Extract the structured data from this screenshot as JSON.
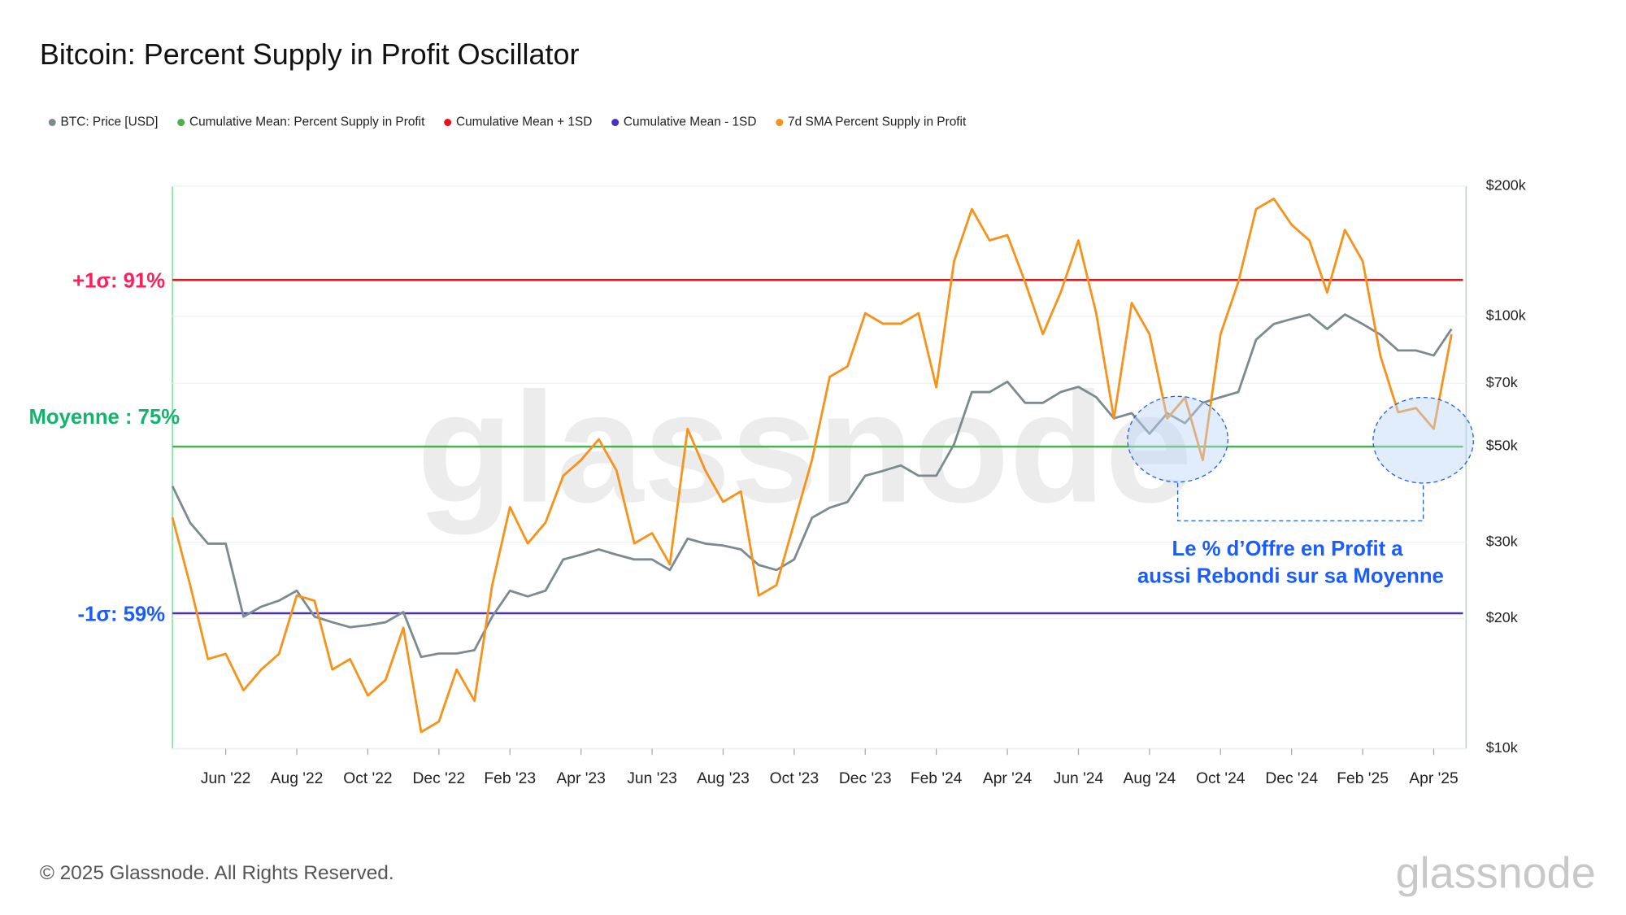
{
  "chart_data": {
    "type": "line",
    "title": "Bitcoin: Percent Supply in Profit Oscillator",
    "watermark": "glassnode",
    "footer": "© 2025 Glassnode. All Rights Reserved.",
    "logo": "glassnode",
    "annotation": [
      "Le % d’Offre en Profit a",
      "aussi Rebondi sur sa Moyenne"
    ],
    "categories": [
      null,
      null,
      null,
      "Jun '22",
      null,
      null,
      null,
      "Aug '22",
      null,
      null,
      null,
      "Oct '22",
      null,
      null,
      null,
      "Dec '22",
      null,
      null,
      null,
      "Feb '23",
      null,
      null,
      null,
      "Apr '23",
      null,
      null,
      null,
      "Jun '23",
      null,
      null,
      null,
      "Aug '23",
      null,
      null,
      null,
      "Oct '23",
      null,
      null,
      null,
      "Dec '23",
      null,
      null,
      null,
      "Feb '24",
      null,
      null,
      null,
      "Apr '24",
      null,
      null,
      null,
      "Jun '24",
      null,
      null,
      null,
      "Aug '24",
      null,
      null,
      null,
      "Oct '24",
      null,
      null,
      null,
      "Dec '24",
      null,
      null,
      null,
      "Feb '25",
      null,
      null,
      null,
      "Apr '25",
      null
    ],
    "ylim": [
      46,
      100
    ],
    "y2lim": [
      10000,
      200000
    ],
    "y2log": true,
    "y2ticks": [
      {
        "value": 10000,
        "label": "$10k"
      },
      {
        "value": 20000,
        "label": "$20k"
      },
      {
        "value": 30000,
        "label": "$30k"
      },
      {
        "value": 50000,
        "label": "$50k"
      },
      {
        "value": 70000,
        "label": "$70k"
      },
      {
        "value": 100000,
        "label": "$100k"
      },
      {
        "value": 200000,
        "label": "$200k"
      }
    ],
    "grid": true,
    "series": [
      {
        "name": "BTC: Price [USD]",
        "color": "#7d8b8f",
        "axis": "y2",
        "values": [
          40500,
          33300,
          29800,
          29800,
          20200,
          21300,
          22000,
          23200,
          20200,
          19600,
          19100,
          19300,
          19600,
          20700,
          16300,
          16600,
          16600,
          16900,
          20200,
          23200,
          22500,
          23200,
          27400,
          28100,
          28900,
          28100,
          27400,
          27400,
          25900,
          30600,
          29800,
          29500,
          28900,
          26600,
          25900,
          27400,
          34200,
          36100,
          37200,
          42800,
          43900,
          45200,
          42800,
          42800,
          50600,
          66800,
          66800,
          70600,
          63100,
          63100,
          66800,
          68700,
          65000,
          58100,
          59700,
          53500,
          59700,
          56600,
          63100,
          65000,
          66800,
          88300,
          96000,
          98600,
          101000,
          93500,
          101000,
          96000,
          90700,
          83400,
          83400,
          81200,
          93500
        ]
      },
      {
        "name": "7d SMA Percent Supply in Profit",
        "color": "#f7931a",
        "values": [
          68.2,
          61.7,
          54.6,
          55.1,
          51.6,
          53.6,
          55.1,
          60.7,
          60.2,
          53.6,
          54.6,
          51.1,
          52.6,
          57.6,
          47.6,
          48.6,
          53.6,
          50.6,
          61.7,
          69.2,
          65.7,
          67.7,
          72.2,
          73.7,
          75.7,
          72.7,
          65.7,
          66.7,
          63.7,
          76.7,
          72.7,
          69.7,
          70.7,
          60.7,
          61.7,
          67.7,
          73.7,
          81.7,
          82.7,
          87.8,
          86.8,
          86.8,
          87.8,
          80.7,
          92.8,
          97.8,
          94.8,
          95.3,
          90.8,
          85.8,
          89.8,
          94.8,
          87.8,
          77.7,
          88.8,
          85.8,
          77.7,
          79.7,
          73.7,
          85.8,
          90.8,
          97.8,
          98.8,
          96.3,
          94.8,
          89.8,
          95.8,
          92.8,
          83.7,
          78.3,
          78.7,
          76.7,
          85.8
        ]
      }
    ],
    "reference_lines": [
      {
        "name": "Cumulative Mean: Percent Supply in Profit",
        "value": 75,
        "label": "Moyenne : 75%",
        "color": "#4caf50",
        "label_color": "#13b56c"
      },
      {
        "name": "Cumulative Mean + 1SD",
        "value": 91,
        "label": "+1σ: 91%",
        "color": "#e8141c",
        "label_color": "#ff1f5a"
      },
      {
        "name": "Cumulative Mean - 1SD",
        "value": 59,
        "label": "-1σ: 59%",
        "color": "#4a30c0",
        "label_color": "#1a5cff"
      }
    ]
  }
}
